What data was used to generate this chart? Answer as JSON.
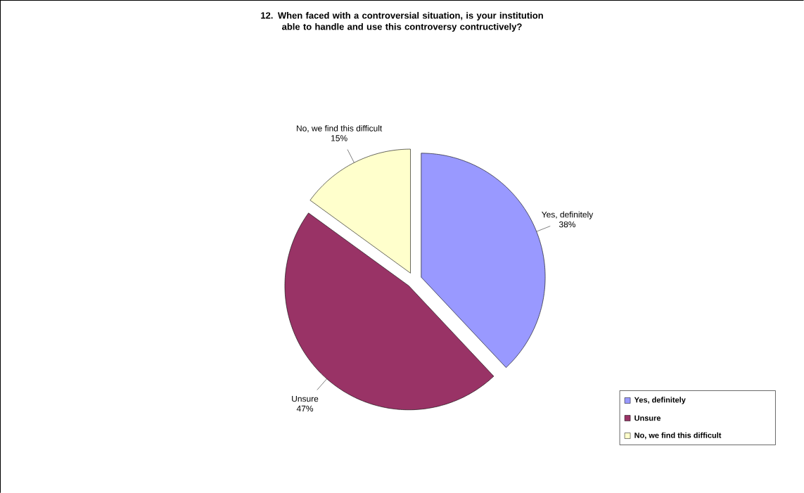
{
  "chart_data": {
    "type": "pie",
    "title": "12. When faced with a controversial situation, is your institution able to handle and use this controversy contructively?",
    "categories": [
      "Yes, definitely",
      "Unsure",
      "No, we find this difficult"
    ],
    "values": [
      38,
      47,
      15
    ],
    "value_labels": [
      "38%",
      "47%",
      "15%"
    ],
    "colors": [
      "#9999ff",
      "#993366",
      "#ffffcc"
    ],
    "legend": "bottom right"
  }
}
